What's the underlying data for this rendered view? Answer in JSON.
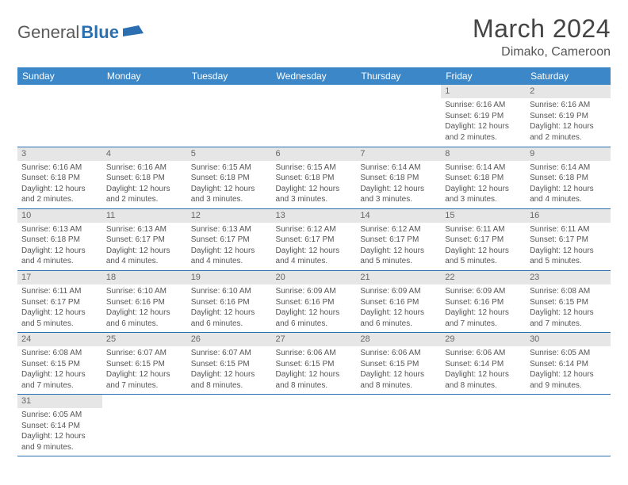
{
  "brand": {
    "part1": "General",
    "part2": "Blue"
  },
  "title": "March 2024",
  "subtitle": "Dimako, Cameroon",
  "colors": {
    "header_bg": "#3b87c8",
    "border": "#2b6fb0",
    "daynum_bg": "#e6e6e6",
    "text": "#555555"
  },
  "weekdays": [
    "Sunday",
    "Monday",
    "Tuesday",
    "Wednesday",
    "Thursday",
    "Friday",
    "Saturday"
  ],
  "cells": [
    [
      {
        "day": "",
        "lines": []
      },
      {
        "day": "",
        "lines": []
      },
      {
        "day": "",
        "lines": []
      },
      {
        "day": "",
        "lines": []
      },
      {
        "day": "",
        "lines": []
      },
      {
        "day": "1",
        "lines": [
          "Sunrise: 6:16 AM",
          "Sunset: 6:19 PM",
          "Daylight: 12 hours and 2 minutes."
        ]
      },
      {
        "day": "2",
        "lines": [
          "Sunrise: 6:16 AM",
          "Sunset: 6:19 PM",
          "Daylight: 12 hours and 2 minutes."
        ]
      }
    ],
    [
      {
        "day": "3",
        "lines": [
          "Sunrise: 6:16 AM",
          "Sunset: 6:18 PM",
          "Daylight: 12 hours and 2 minutes."
        ]
      },
      {
        "day": "4",
        "lines": [
          "Sunrise: 6:16 AM",
          "Sunset: 6:18 PM",
          "Daylight: 12 hours and 2 minutes."
        ]
      },
      {
        "day": "5",
        "lines": [
          "Sunrise: 6:15 AM",
          "Sunset: 6:18 PM",
          "Daylight: 12 hours and 3 minutes."
        ]
      },
      {
        "day": "6",
        "lines": [
          "Sunrise: 6:15 AM",
          "Sunset: 6:18 PM",
          "Daylight: 12 hours and 3 minutes."
        ]
      },
      {
        "day": "7",
        "lines": [
          "Sunrise: 6:14 AM",
          "Sunset: 6:18 PM",
          "Daylight: 12 hours and 3 minutes."
        ]
      },
      {
        "day": "8",
        "lines": [
          "Sunrise: 6:14 AM",
          "Sunset: 6:18 PM",
          "Daylight: 12 hours and 3 minutes."
        ]
      },
      {
        "day": "9",
        "lines": [
          "Sunrise: 6:14 AM",
          "Sunset: 6:18 PM",
          "Daylight: 12 hours and 4 minutes."
        ]
      }
    ],
    [
      {
        "day": "10",
        "lines": [
          "Sunrise: 6:13 AM",
          "Sunset: 6:18 PM",
          "Daylight: 12 hours and 4 minutes."
        ]
      },
      {
        "day": "11",
        "lines": [
          "Sunrise: 6:13 AM",
          "Sunset: 6:17 PM",
          "Daylight: 12 hours and 4 minutes."
        ]
      },
      {
        "day": "12",
        "lines": [
          "Sunrise: 6:13 AM",
          "Sunset: 6:17 PM",
          "Daylight: 12 hours and 4 minutes."
        ]
      },
      {
        "day": "13",
        "lines": [
          "Sunrise: 6:12 AM",
          "Sunset: 6:17 PM",
          "Daylight: 12 hours and 4 minutes."
        ]
      },
      {
        "day": "14",
        "lines": [
          "Sunrise: 6:12 AM",
          "Sunset: 6:17 PM",
          "Daylight: 12 hours and 5 minutes."
        ]
      },
      {
        "day": "15",
        "lines": [
          "Sunrise: 6:11 AM",
          "Sunset: 6:17 PM",
          "Daylight: 12 hours and 5 minutes."
        ]
      },
      {
        "day": "16",
        "lines": [
          "Sunrise: 6:11 AM",
          "Sunset: 6:17 PM",
          "Daylight: 12 hours and 5 minutes."
        ]
      }
    ],
    [
      {
        "day": "17",
        "lines": [
          "Sunrise: 6:11 AM",
          "Sunset: 6:17 PM",
          "Daylight: 12 hours and 5 minutes."
        ]
      },
      {
        "day": "18",
        "lines": [
          "Sunrise: 6:10 AM",
          "Sunset: 6:16 PM",
          "Daylight: 12 hours and 6 minutes."
        ]
      },
      {
        "day": "19",
        "lines": [
          "Sunrise: 6:10 AM",
          "Sunset: 6:16 PM",
          "Daylight: 12 hours and 6 minutes."
        ]
      },
      {
        "day": "20",
        "lines": [
          "Sunrise: 6:09 AM",
          "Sunset: 6:16 PM",
          "Daylight: 12 hours and 6 minutes."
        ]
      },
      {
        "day": "21",
        "lines": [
          "Sunrise: 6:09 AM",
          "Sunset: 6:16 PM",
          "Daylight: 12 hours and 6 minutes."
        ]
      },
      {
        "day": "22",
        "lines": [
          "Sunrise: 6:09 AM",
          "Sunset: 6:16 PM",
          "Daylight: 12 hours and 7 minutes."
        ]
      },
      {
        "day": "23",
        "lines": [
          "Sunrise: 6:08 AM",
          "Sunset: 6:15 PM",
          "Daylight: 12 hours and 7 minutes."
        ]
      }
    ],
    [
      {
        "day": "24",
        "lines": [
          "Sunrise: 6:08 AM",
          "Sunset: 6:15 PM",
          "Daylight: 12 hours and 7 minutes."
        ]
      },
      {
        "day": "25",
        "lines": [
          "Sunrise: 6:07 AM",
          "Sunset: 6:15 PM",
          "Daylight: 12 hours and 7 minutes."
        ]
      },
      {
        "day": "26",
        "lines": [
          "Sunrise: 6:07 AM",
          "Sunset: 6:15 PM",
          "Daylight: 12 hours and 8 minutes."
        ]
      },
      {
        "day": "27",
        "lines": [
          "Sunrise: 6:06 AM",
          "Sunset: 6:15 PM",
          "Daylight: 12 hours and 8 minutes."
        ]
      },
      {
        "day": "28",
        "lines": [
          "Sunrise: 6:06 AM",
          "Sunset: 6:15 PM",
          "Daylight: 12 hours and 8 minutes."
        ]
      },
      {
        "day": "29",
        "lines": [
          "Sunrise: 6:06 AM",
          "Sunset: 6:14 PM",
          "Daylight: 12 hours and 8 minutes."
        ]
      },
      {
        "day": "30",
        "lines": [
          "Sunrise: 6:05 AM",
          "Sunset: 6:14 PM",
          "Daylight: 12 hours and 9 minutes."
        ]
      }
    ],
    [
      {
        "day": "31",
        "lines": [
          "Sunrise: 6:05 AM",
          "Sunset: 6:14 PM",
          "Daylight: 12 hours and 9 minutes."
        ]
      },
      {
        "day": "",
        "lines": []
      },
      {
        "day": "",
        "lines": []
      },
      {
        "day": "",
        "lines": []
      },
      {
        "day": "",
        "lines": []
      },
      {
        "day": "",
        "lines": []
      },
      {
        "day": "",
        "lines": []
      }
    ]
  ]
}
